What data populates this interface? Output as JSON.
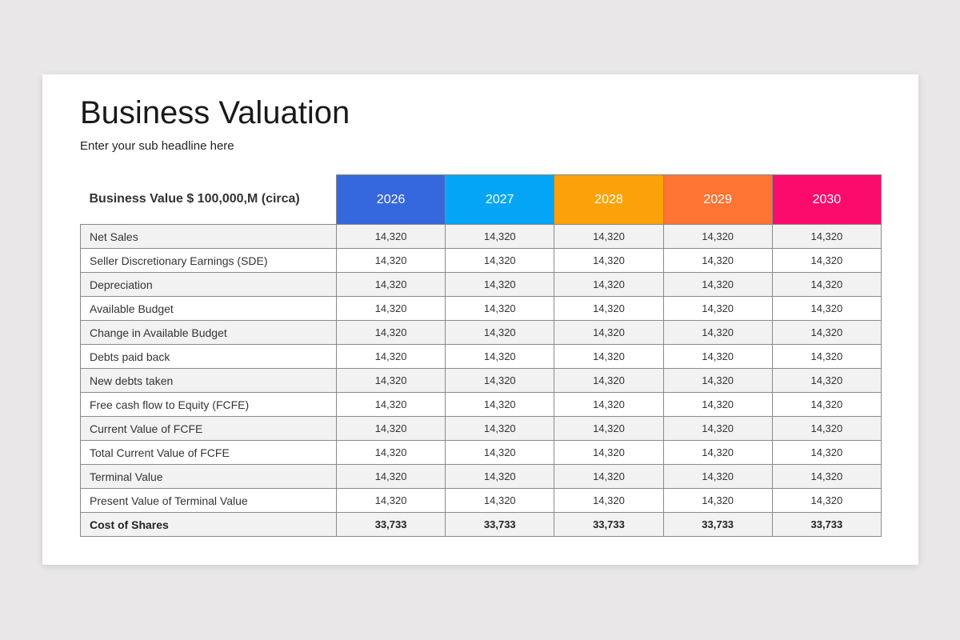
{
  "title": "Business Valuation",
  "subtitle": "Enter your sub headline here",
  "table": {
    "corner_label": "Business Value $ 100,000,M (circa)",
    "years": [
      {
        "label": "2026",
        "color": "#3567dd"
      },
      {
        "label": "2027",
        "color": "#04a5f5"
      },
      {
        "label": "2028",
        "color": "#fba20b"
      },
      {
        "label": "2029",
        "color": "#fd7433"
      },
      {
        "label": "2030",
        "color": "#fb0c6a"
      }
    ],
    "rows": [
      {
        "label": "Net Sales",
        "values": [
          "14,320",
          "14,320",
          "14,320",
          "14,320",
          "14,320"
        ]
      },
      {
        "label": "Seller Discretionary Earnings (SDE)",
        "values": [
          "14,320",
          "14,320",
          "14,320",
          "14,320",
          "14,320"
        ]
      },
      {
        "label": "Depreciation",
        "values": [
          "14,320",
          "14,320",
          "14,320",
          "14,320",
          "14,320"
        ]
      },
      {
        "label": "Available Budget",
        "values": [
          "14,320",
          "14,320",
          "14,320",
          "14,320",
          "14,320"
        ]
      },
      {
        "label": "Change in Available Budget",
        "values": [
          "14,320",
          "14,320",
          "14,320",
          "14,320",
          "14,320"
        ]
      },
      {
        "label": "Debts paid back",
        "values": [
          "14,320",
          "14,320",
          "14,320",
          "14,320",
          "14,320"
        ]
      },
      {
        "label": "New debts taken",
        "values": [
          "14,320",
          "14,320",
          "14,320",
          "14,320",
          "14,320"
        ]
      },
      {
        "label": "Free cash flow to Equity (FCFE)",
        "values": [
          "14,320",
          "14,320",
          "14,320",
          "14,320",
          "14,320"
        ]
      },
      {
        "label": "Current Value of FCFE",
        "values": [
          "14,320",
          "14,320",
          "14,320",
          "14,320",
          "14,320"
        ]
      },
      {
        "label": "Total Current Value of FCFE",
        "values": [
          "14,320",
          "14,320",
          "14,320",
          "14,320",
          "14,320"
        ]
      },
      {
        "label": "Terminal Value",
        "values": [
          "14,320",
          "14,320",
          "14,320",
          "14,320",
          "14,320"
        ]
      },
      {
        "label": "Present Value of Terminal Value",
        "values": [
          "14,320",
          "14,320",
          "14,320",
          "14,320",
          "14,320"
        ]
      },
      {
        "label": "Cost of Shares",
        "values": [
          "33,733",
          "33,733",
          "33,733",
          "33,733",
          "33,733"
        ],
        "total": true
      }
    ]
  }
}
